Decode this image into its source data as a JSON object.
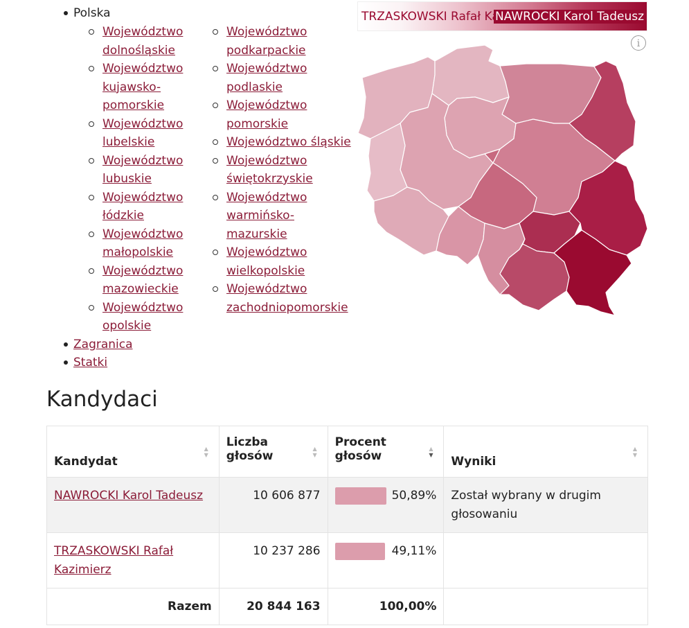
{
  "nav": {
    "root": "Polska",
    "voivodeships_left": [
      "Województwo dolnośląskie",
      "Województwo kujawsko-pomorskie",
      "Województwo lubelskie",
      "Województwo lubuskie",
      "Województwo łódzkie",
      "Województwo małopolskie",
      "Województwo mazowieckie",
      "Województwo opolskie"
    ],
    "voivodeships_right": [
      "Województwo podkarpackie",
      "Województwo podlaskie",
      "Województwo pomorskie",
      "Województwo śląskie",
      "Województwo świętokrzyskie",
      "Województwo warmińsko-mazurskie",
      "Województwo wielkopolskie",
      "Województwo zachodniopomorskie"
    ],
    "abroad": "Zagranica",
    "ships": "Statki"
  },
  "map": {
    "legend_left": "TRZASKOWSKI Rafał Kazi",
    "legend_right": "NAWROCKI Karol Tadeusz",
    "info_symbol": "i",
    "colors": {
      "low": "#edc2cd",
      "high": "#9a0a30"
    }
  },
  "candidates": {
    "title": "Kandydaci",
    "headers": {
      "candidate": "Kandydat",
      "votes_1": "Liczba",
      "votes_2": "głosów",
      "percent_1": "Procent",
      "percent_2": "głosów",
      "results": "Wyniki"
    },
    "rows": [
      {
        "name": "NAWROCKI Karol Tadeusz",
        "votes": "10 606 877",
        "percent_label": "50,89%",
        "percent": 50.89,
        "result": "Został wybrany w drugim głosowaniu"
      },
      {
        "name": "TRZASKOWSKI Rafał Kazimierz",
        "votes": "10 237 286",
        "percent_label": "49,11%",
        "percent": 49.11,
        "result": ""
      }
    ],
    "total": {
      "label": "Razem",
      "votes": "20 844 163",
      "percent": "100,00%"
    }
  }
}
